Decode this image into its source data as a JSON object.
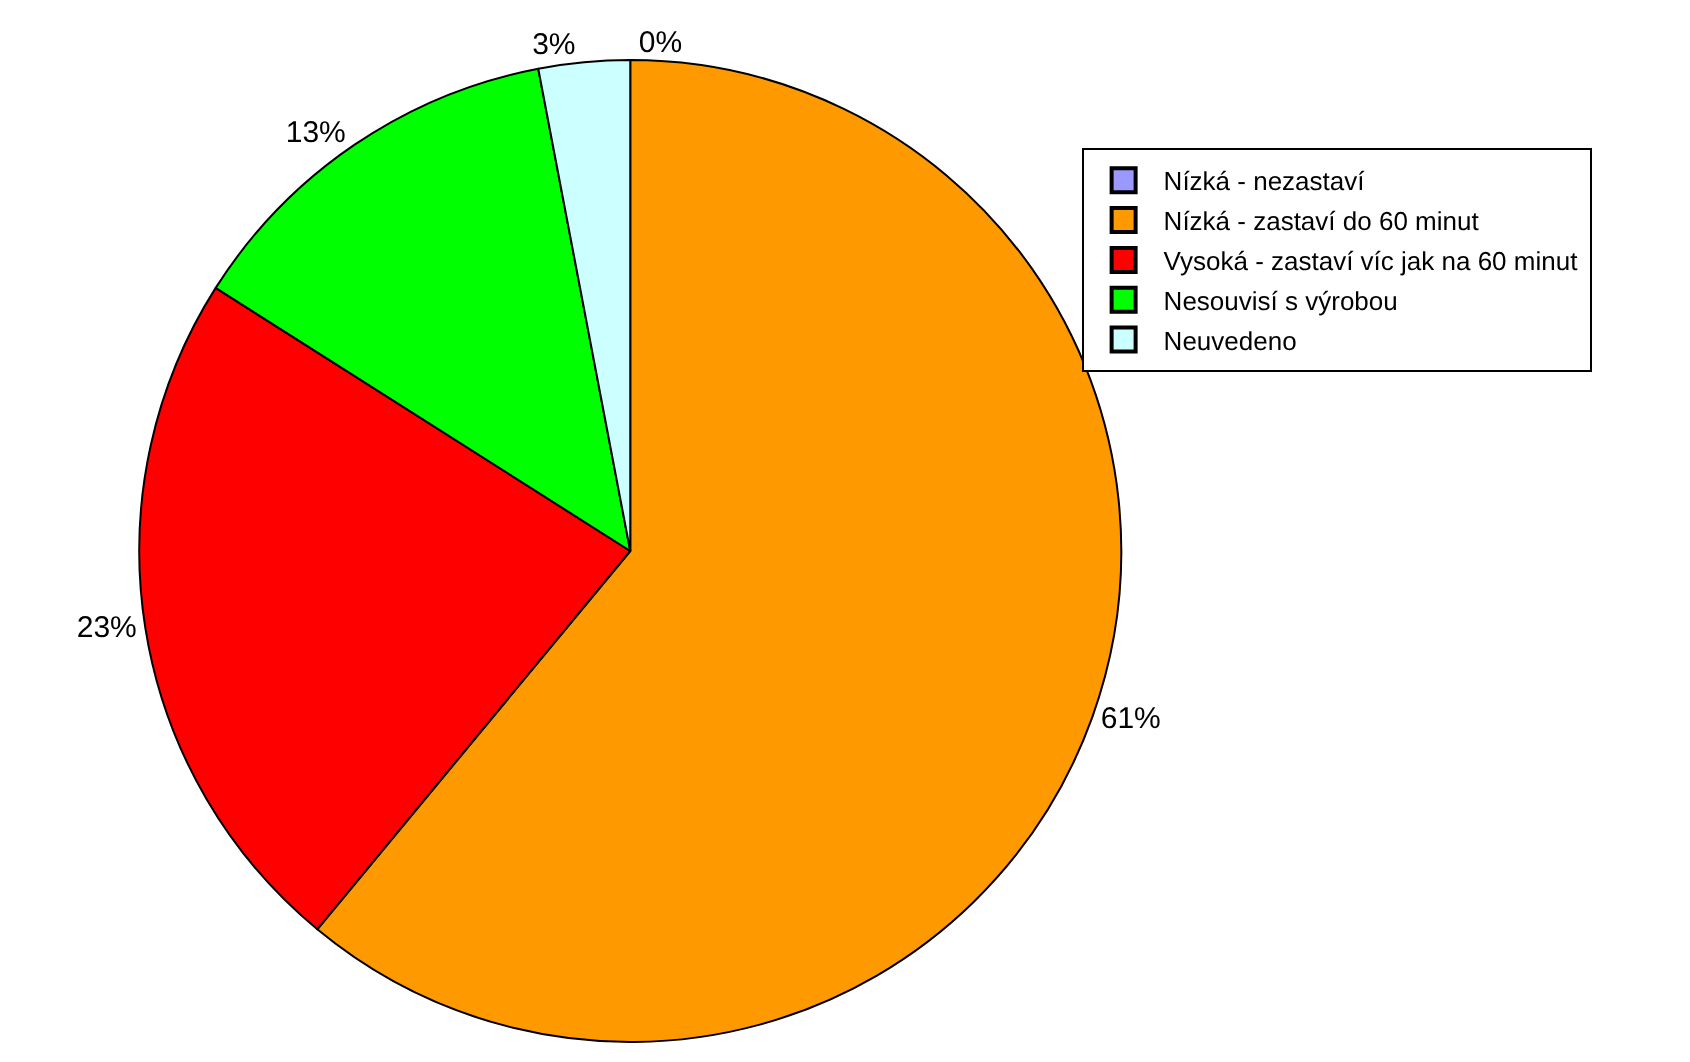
{
  "chart_data": {
    "type": "pie",
    "categories": [
      "Nízká - nezastaví",
      "Nízká - zastaví do 60 minut",
      "Vysoká - zastaví víc jak na 60 minut",
      "Nesouvisí s výrobou",
      "Neuvedeno"
    ],
    "values": [
      0,
      61,
      23,
      13,
      3
    ],
    "colors": [
      "#9999ff",
      "#ff9900",
      "#ff0000",
      "#00ff00",
      "#ccffff"
    ],
    "value_labels": [
      "0%",
      "61%",
      "23%",
      "13%",
      "3%"
    ],
    "legend": "top right"
  }
}
